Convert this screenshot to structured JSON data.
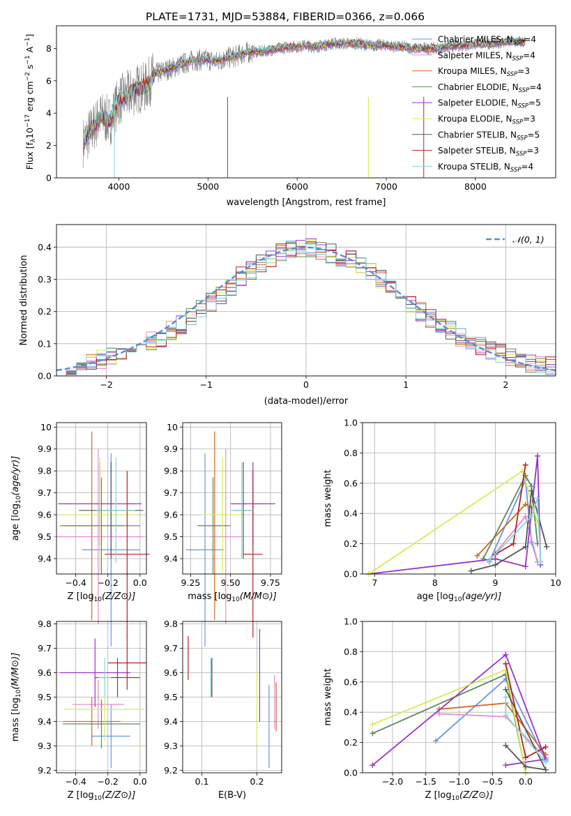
{
  "chart_data": [
    {
      "id": "spectrum",
      "type": "line",
      "title": "PLATE=1731, MJD=53884, FIBERID=0366, z=0.066",
      "xlabel": "wavelength [Angstrom, rest frame]",
      "ylabel_parts": [
        "Flux [f",
        "λ",
        "10",
        "−17",
        " erg cm",
        "−2",
        " s",
        "−1",
        " A",
        "−1",
        "]"
      ],
      "xlim": [
        3300,
        8900
      ],
      "ylim": [
        0,
        9.4
      ],
      "xticks": [
        4000,
        5000,
        6000,
        7000,
        8000
      ],
      "yticks": [
        0,
        2,
        4,
        6,
        8
      ],
      "observed": {
        "x": [
          3600,
          3700,
          3800,
          3900,
          4000,
          4100,
          4200,
          4300,
          4400,
          4500,
          4600,
          4700,
          4800,
          4900,
          5000,
          5100,
          5200,
          5300,
          5400,
          5500,
          5600,
          5700,
          5800,
          5900,
          6000,
          6100,
          6200,
          6300,
          6400,
          6500,
          6600,
          6700,
          6800,
          6900,
          7000,
          7100,
          7200,
          7300,
          7400,
          7500,
          7600,
          7700,
          7800,
          7900,
          8000,
          8100,
          8200,
          8300,
          8400,
          8500,
          8600
        ],
        "y": [
          2.2,
          3.0,
          3.8,
          3.5,
          4.8,
          5.1,
          5.5,
          5.6,
          6.4,
          6.6,
          6.8,
          7.0,
          7.2,
          7.3,
          7.3,
          7.2,
          7.4,
          7.5,
          7.7,
          7.8,
          7.8,
          7.9,
          8.0,
          8.1,
          8.1,
          8.2,
          8.1,
          8.2,
          8.3,
          8.3,
          8.3,
          8.3,
          8.2,
          8.2,
          8.2,
          8.1,
          8.1,
          8.0,
          8.0,
          8.0,
          8.0,
          8.1,
          8.2,
          8.2,
          8.3,
          8.3,
          8.3,
          8.4,
          8.4,
          8.4,
          8.4
        ]
      },
      "legend": [
        {
          "name": "Chabrier MILES, N",
          "sub": "SSP",
          "tail": "=4",
          "color": "#6495ed"
        },
        {
          "name": "Salpeter MILES, N",
          "sub": "SSP",
          "tail": "=4",
          "color": "#e88acf"
        },
        {
          "name": "Kroupa MILES, N",
          "sub": "SSP",
          "tail": "=3",
          "color": "#d2691e"
        },
        {
          "name": "Chabrier ELODIE, N",
          "sub": "SSP",
          "tail": "=4",
          "color": "#5a8a5a"
        },
        {
          "name": "Salpeter ELODIE, N",
          "sub": "SSP",
          "tail": "=5",
          "color": "#9932cc"
        },
        {
          "name": "Kroupa ELODIE, N",
          "sub": "SSP",
          "tail": "=3",
          "color": "#d4ec50"
        },
        {
          "name": "Chabrier STELIB, N",
          "sub": "SSP",
          "tail": "=5",
          "color": "#555555"
        },
        {
          "name": "Salpeter STELIB, N",
          "sub": "SSP",
          "tail": "=3",
          "color": "#b22222"
        },
        {
          "name": "Kroupa STELIB, N",
          "sub": "SSP",
          "tail": "=4",
          "color": "#7fd8d8"
        }
      ]
    },
    {
      "id": "residuals",
      "type": "histogram",
      "xlabel": "(data-model)/error",
      "ylabel": "Normed distribution",
      "xlim": [
        -2.5,
        2.5
      ],
      "ylim": [
        0,
        0.47
      ],
      "xticks": [
        -2,
        -1,
        0,
        1,
        2
      ],
      "yticks": [
        0.0,
        0.1,
        0.2,
        0.3,
        0.4
      ],
      "legend": "𝒩(0, 1)",
      "bin_edges": [
        -2.5,
        -2.4,
        -2.3,
        -2.2,
        -2.1,
        -2.0,
        -1.9,
        -1.8,
        -1.7,
        -1.6,
        -1.5,
        -1.4,
        -1.3,
        -1.2,
        -1.1,
        -1.0,
        -0.9,
        -0.8,
        -0.7,
        -0.6,
        -0.5,
        -0.4,
        -0.3,
        -0.2,
        -0.1,
        0.0,
        0.1,
        0.2,
        0.3,
        0.4,
        0.5,
        0.6,
        0.7,
        0.8,
        0.9,
        1.0,
        1.1,
        1.2,
        1.3,
        1.4,
        1.5,
        1.6,
        1.7,
        1.8,
        1.9,
        2.0,
        2.1,
        2.2,
        2.3,
        2.4,
        2.5
      ],
      "density": [
        0.02,
        0.03,
        0.03,
        0.04,
        0.05,
        0.06,
        0.07,
        0.08,
        0.09,
        0.11,
        0.12,
        0.14,
        0.16,
        0.18,
        0.21,
        0.23,
        0.25,
        0.28,
        0.31,
        0.33,
        0.35,
        0.36,
        0.38,
        0.39,
        0.4,
        0.4,
        0.39,
        0.38,
        0.37,
        0.36,
        0.34,
        0.32,
        0.3,
        0.27,
        0.25,
        0.22,
        0.2,
        0.18,
        0.16,
        0.14,
        0.12,
        0.1,
        0.09,
        0.08,
        0.07,
        0.06,
        0.05,
        0.04,
        0.03,
        0.03
      ]
    },
    {
      "id": "age-vs-Z",
      "type": "errorbar",
      "xlabel": "Z [log10(Z/Z⊙)]",
      "ylabel": "age [log10(age/yr)]",
      "xlim": [
        -0.52,
        0.04
      ],
      "ylim": [
        9.33,
        10.02
      ],
      "xticks": [
        -0.4,
        -0.2,
        0.0
      ],
      "xtick_labels": [
        "−0.4",
        "−0.2",
        "0.0"
      ],
      "yticks": [
        9.4,
        9.5,
        9.6,
        9.7,
        9.8,
        9.9,
        10.0
      ],
      "points": [
        {
          "color": "#6495ed",
          "x": -0.18,
          "xerr": 0.18,
          "y": 9.44,
          "yerr": 0.44
        },
        {
          "color": "#e88acf",
          "x": -0.26,
          "xerr": 0.28,
          "y": 9.5,
          "yerr": 0.4
        },
        {
          "color": "#d2691e",
          "x": -0.3,
          "xerr": 0.2,
          "y": 9.55,
          "yerr": 0.43
        },
        {
          "color": "#5a8a5a",
          "x": -0.24,
          "xerr": 0.24,
          "y": 9.55,
          "yerr": 0.22
        },
        {
          "color": "#9932cc",
          "x": -0.25,
          "xerr": 0.26,
          "y": 9.65,
          "yerr": 0.19
        },
        {
          "color": "#d4ec50",
          "x": -0.25,
          "xerr": 0.24,
          "y": 9.6,
          "yerr": 0.26
        },
        {
          "color": "#555555",
          "x": -0.18,
          "xerr": 0.2,
          "y": 9.62,
          "yerr": 0.22
        },
        {
          "color": "#b22222",
          "x": -0.08,
          "xerr": 0.14,
          "y": 9.42,
          "yerr": 0.38
        },
        {
          "color": "#7fd8d8",
          "x": -0.15,
          "xerr": 0.12,
          "y": 9.62,
          "yerr": 0.24
        }
      ]
    },
    {
      "id": "age-vs-mass",
      "type": "errorbar",
      "xlabel": "mass [log10(M/M⊙)]",
      "ylabel": "",
      "xlim": [
        9.2,
        9.82
      ],
      "ylim": [
        9.33,
        10.02
      ],
      "xticks": [
        9.25,
        9.5,
        9.75
      ],
      "xtick_labels": [
        "9.25",
        "9.50",
        "9.75"
      ],
      "yticks": [
        9.4,
        9.5,
        9.6,
        9.7,
        9.8,
        9.9,
        10.0
      ],
      "points": [
        {
          "color": "#6495ed",
          "x": 9.34,
          "xerr": 0.12,
          "y": 9.44,
          "yerr": 0.44
        },
        {
          "color": "#e88acf",
          "x": 9.47,
          "xerr": 0.1,
          "y": 9.5,
          "yerr": 0.4
        },
        {
          "color": "#d2691e",
          "x": 9.4,
          "xerr": 0.1,
          "y": 9.55,
          "yerr": 0.43
        },
        {
          "color": "#5a8a5a",
          "x": 9.39,
          "xerr": 0.1,
          "y": 9.55,
          "yerr": 0.22
        },
        {
          "color": "#9932cc",
          "x": 9.64,
          "xerr": 0.14,
          "y": 9.65,
          "yerr": 0.19
        },
        {
          "color": "#d4ec50",
          "x": 9.45,
          "xerr": 0.13,
          "y": 9.6,
          "yerr": 0.26
        },
        {
          "color": "#555555",
          "x": 9.58,
          "xerr": 0.06,
          "y": 9.62,
          "yerr": 0.22
        },
        {
          "color": "#b22222",
          "x": 9.64,
          "xerr": 0.06,
          "y": 9.42,
          "yerr": 0.38
        },
        {
          "color": "#7fd8d8",
          "x": 9.57,
          "xerr": 0.07,
          "y": 9.62,
          "yerr": 0.22
        }
      ]
    },
    {
      "id": "mass-weight-vs-age",
      "type": "line",
      "xlabel": "age [log10(age/yr)]",
      "ylabel": "mass weight",
      "xlim": [
        6.8,
        10.0
      ],
      "ylim": [
        0.0,
        1.0
      ],
      "xticks": [
        7,
        8,
        9,
        10
      ],
      "yticks": [
        0.0,
        0.2,
        0.4,
        0.6,
        0.8,
        1.0
      ],
      "series": [
        {
          "color": "#6495ed",
          "points": [
            [
              8.9,
              0.08
            ],
            [
              9.5,
              0.62
            ],
            [
              9.6,
              0.21
            ],
            [
              9.7,
              0.08
            ]
          ]
        },
        {
          "color": "#e88acf",
          "points": [
            [
              8.9,
              0.09
            ],
            [
              9.5,
              0.38
            ],
            [
              9.7,
              0.08
            ]
          ]
        },
        {
          "color": "#d2691e",
          "points": [
            [
              8.7,
              0.12
            ],
            [
              9.5,
              0.46
            ],
            [
              9.6,
              0.44
            ]
          ]
        },
        {
          "color": "#5a8a5a",
          "points": [
            [
              8.8,
              0.1
            ],
            [
              9.5,
              0.65
            ],
            [
              9.6,
              0.58
            ],
            [
              9.7,
              0.2
            ]
          ]
        },
        {
          "color": "#9932cc",
          "points": [
            [
              6.9,
              0.0
            ],
            [
              9.0,
              0.1
            ],
            [
              9.5,
              0.05
            ],
            [
              9.7,
              0.78
            ],
            [
              9.75,
              0.06
            ]
          ]
        },
        {
          "color": "#d4ec50",
          "points": [
            [
              6.9,
              0.0
            ],
            [
              9.45,
              0.68
            ],
            [
              9.7,
              0.34
            ]
          ]
        },
        {
          "color": "#555555",
          "points": [
            [
              8.6,
              0.02
            ],
            [
              9.0,
              0.06
            ],
            [
              9.5,
              0.18
            ],
            [
              9.6,
              0.55
            ],
            [
              9.85,
              0.18
            ]
          ]
        },
        {
          "color": "#b22222",
          "points": [
            [
              9.0,
              0.13
            ],
            [
              9.3,
              0.2
            ],
            [
              9.5,
              0.72
            ]
          ]
        },
        {
          "color": "#7fd8d8",
          "points": [
            [
              8.9,
              0.09
            ],
            [
              9.6,
              0.38
            ],
            [
              9.7,
              0.5
            ],
            [
              9.75,
              0.08
            ]
          ]
        }
      ]
    },
    {
      "id": "mass-vs-Z",
      "type": "errorbar",
      "xlabel": "Z [log10(Z/Z⊙)]",
      "ylabel": "mass [log10(M/M⊙)]",
      "xlim": [
        -0.52,
        0.04
      ],
      "ylim": [
        9.19,
        9.81
      ],
      "xticks": [
        -0.4,
        -0.2,
        0.0
      ],
      "xtick_labels": [
        "−0.4",
        "−0.2",
        "0.0"
      ],
      "yticks": [
        9.2,
        9.3,
        9.4,
        9.5,
        9.6,
        9.7,
        9.8
      ],
      "points": [
        {
          "color": "#6495ed",
          "x": -0.18,
          "xerr": 0.12,
          "y": 9.34,
          "yerr": 0.13
        },
        {
          "color": "#e88acf",
          "x": -0.26,
          "xerr": 0.16,
          "y": 9.47,
          "yerr": 0.1
        },
        {
          "color": "#d2691e",
          "x": -0.3,
          "xerr": 0.18,
          "y": 9.4,
          "yerr": 0.1
        },
        {
          "color": "#5a8a5a",
          "x": -0.24,
          "xerr": 0.24,
          "y": 9.39,
          "yerr": 0.1
        },
        {
          "color": "#9932cc",
          "x": -0.28,
          "xerr": 0.22,
          "y": 9.6,
          "yerr": 0.14
        },
        {
          "color": "#d4ec50",
          "x": -0.22,
          "xerr": 0.25,
          "y": 9.45,
          "yerr": 0.13
        },
        {
          "color": "#555555",
          "x": -0.14,
          "xerr": 0.14,
          "y": 9.58,
          "yerr": 0.08
        },
        {
          "color": "#b22222",
          "x": -0.08,
          "xerr": 0.12,
          "y": 9.64,
          "yerr": 0.11
        },
        {
          "color": "#7fd8d8",
          "x": -0.22,
          "xerr": 0.04,
          "y": 9.58,
          "yerr": 0.08
        }
      ]
    },
    {
      "id": "mass-vs-ebv",
      "type": "errorbar",
      "xlabel": "E(B-V)",
      "ylabel": "",
      "xlim": [
        0.065,
        0.245
      ],
      "ylim": [
        9.19,
        9.81
      ],
      "xticks": [
        0.1,
        0.2
      ],
      "xtick_labels": [
        "0.1",
        "0.2"
      ],
      "yticks": [
        9.2,
        9.3,
        9.4,
        9.5,
        9.6,
        9.7,
        9.8
      ],
      "points": [
        {
          "color": "#6495ed",
          "x": 0.222,
          "y": 9.38,
          "yerr": 0.17
        },
        {
          "color": "#e88acf",
          "x": 0.232,
          "y": 9.48,
          "yerr": 0.11
        },
        {
          "color": "#d2691e",
          "x": 0.235,
          "y": 9.46,
          "yerr": 0.1
        },
        {
          "color": "#5a8a5a",
          "x": 0.118,
          "y": 9.58,
          "yerr": 0.08
        },
        {
          "color": "#9932cc",
          "x": 0.205,
          "y": 9.59,
          "yerr": 0.19
        },
        {
          "color": "#d4ec50",
          "x": 0.2,
          "y": 9.46,
          "yerr": 0.15
        },
        {
          "color": "#555555",
          "x": 0.118,
          "y": 9.58,
          "yerr": 0.08
        },
        {
          "color": "#b22222",
          "x": 0.075,
          "y": 9.66,
          "yerr": 0.09
        },
        {
          "color": "#7fd8d8",
          "x": 0.116,
          "y": 9.58,
          "yerr": 0.08
        }
      ]
    },
    {
      "id": "mass-weight-vs-Z",
      "type": "line",
      "xlabel": "Z [log10(Z/Z⊙)]",
      "ylabel": "mass weight",
      "xlim": [
        -2.45,
        0.45
      ],
      "ylim": [
        0.0,
        1.0
      ],
      "xticks": [
        -2.0,
        -1.5,
        -1.0,
        -0.5,
        0.0
      ],
      "xtick_labels": [
        "−2.0",
        "−1.5",
        "−1.0",
        "−0.5",
        "0.0"
      ],
      "yticks": [
        0.0,
        0.2,
        0.4,
        0.6,
        0.8,
        1.0
      ],
      "series": [
        {
          "color": "#6495ed",
          "points": [
            [
              -1.35,
              0.21
            ],
            [
              -0.3,
              0.62
            ],
            [
              0.3,
              0.08
            ]
          ]
        },
        {
          "color": "#e88acf",
          "points": [
            [
              -1.3,
              0.39
            ],
            [
              -0.3,
              0.37
            ],
            [
              0.3,
              0.1
            ]
          ]
        },
        {
          "color": "#d2691e",
          "points": [
            [
              -1.3,
              0.42
            ],
            [
              -0.3,
              0.46
            ],
            [
              0.3,
              0.12
            ]
          ]
        },
        {
          "color": "#5a8a5a",
          "points": [
            [
              -2.3,
              0.26
            ],
            [
              -0.3,
              0.65
            ],
            [
              0.0,
              0.0
            ]
          ]
        },
        {
          "color": "#9932cc",
          "points": [
            [
              -2.3,
              0.05
            ],
            [
              -0.3,
              0.78
            ],
            [
              0.3,
              0.09
            ],
            [
              -0.3,
              0.05
            ]
          ]
        },
        {
          "color": "#d4ec50",
          "points": [
            [
              -2.3,
              0.32
            ],
            [
              -0.3,
              0.68
            ],
            [
              0.0,
              0.0
            ]
          ]
        },
        {
          "color": "#555555",
          "points": [
            [
              -0.3,
              0.18
            ],
            [
              0.0,
              0.04
            ],
            [
              0.3,
              0.02
            ],
            [
              -0.3,
              0.55
            ]
          ]
        },
        {
          "color": "#b22222",
          "points": [
            [
              -0.3,
              0.72
            ],
            [
              0.0,
              0.1
            ],
            [
              0.3,
              0.17
            ]
          ]
        },
        {
          "color": "#7fd8d8",
          "points": [
            [
              -0.3,
              0.5
            ],
            [
              -0.3,
              0.38
            ],
            [
              0.3,
              0.07
            ]
          ]
        }
      ]
    }
  ]
}
